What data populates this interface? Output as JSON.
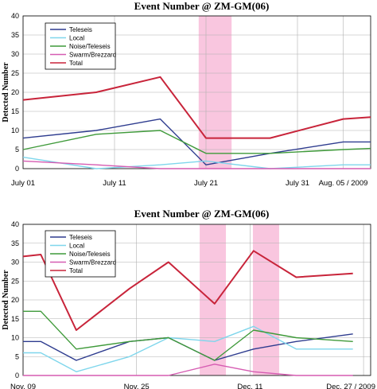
{
  "chart_data": [
    {
      "type": "line",
      "title": "Event Number @ ZM-GM(06)",
      "ylabel": "Detected Number",
      "xlabel": "",
      "ylim": [
        0,
        40
      ],
      "yticks": [
        0,
        5,
        10,
        15,
        20,
        25,
        30,
        35,
        40
      ],
      "xlim": [
        0,
        38
      ],
      "xticks": [
        {
          "x": 0,
          "label": "July 01"
        },
        {
          "x": 10,
          "label": "July 11"
        },
        {
          "x": 20,
          "label": "July 21"
        },
        {
          "x": 30,
          "label": "July 31"
        },
        {
          "x": 35,
          "label": "Aug. 05 / 2009"
        }
      ],
      "grid": true,
      "legend_position": "top-left",
      "shaded_regions": [
        {
          "x0": 19.2,
          "x1": 22.8,
          "color": "#f9c6df"
        }
      ],
      "series": [
        {
          "name": "Teleseis",
          "color": "#2e3c8f",
          "x": [
            0,
            8,
            15,
            20,
            27,
            35,
            38
          ],
          "y": [
            8,
            10,
            13,
            1,
            4,
            7,
            7
          ]
        },
        {
          "name": "Local",
          "color": "#7fd6ec",
          "x": [
            0,
            8,
            15,
            20,
            27,
            35,
            38
          ],
          "y": [
            3,
            0,
            1,
            2,
            0,
            1,
            1
          ]
        },
        {
          "name": "Noise/Teleseis",
          "color": "#3f9a3a",
          "x": [
            0,
            8,
            15,
            20,
            27,
            35,
            38
          ],
          "y": [
            5,
            9,
            10,
            4,
            4,
            5,
            5.3
          ]
        },
        {
          "name": "Swarm/Brezzard",
          "color": "#d65cb2",
          "x": [
            0,
            8,
            15,
            20,
            27,
            35,
            38
          ],
          "y": [
            2,
            1,
            0,
            0,
            0,
            0,
            0
          ]
        },
        {
          "name": "Total",
          "color": "#c8243a",
          "x": [
            0,
            8,
            15,
            20,
            27,
            35,
            38
          ],
          "y": [
            18,
            20,
            24,
            8,
            8,
            13,
            13.5
          ]
        }
      ]
    },
    {
      "type": "line",
      "title": "Event Number @ ZM-GM(06)",
      "ylabel": "Detected Number",
      "xlabel": "",
      "ylim": [
        0,
        40
      ],
      "yticks": [
        0,
        5,
        10,
        15,
        20,
        25,
        30,
        35,
        40
      ],
      "xlim": [
        0,
        49
      ],
      "xticks": [
        {
          "x": 0,
          "label": "Nov. 09"
        },
        {
          "x": 16,
          "label": "Nov. 25"
        },
        {
          "x": 32,
          "label": "Dec. 11"
        },
        {
          "x": 48,
          "label": "Dec. 27 / 2009"
        }
      ],
      "grid": true,
      "legend_position": "top-left",
      "shaded_regions": [
        {
          "x0": 24.9,
          "x1": 28.6,
          "color": "#f9c6df"
        },
        {
          "x0": 32.4,
          "x1": 36.1,
          "color": "#f9c6df"
        }
      ],
      "series": [
        {
          "name": "Teleseis",
          "color": "#2e3c8f",
          "x": [
            0,
            2.5,
            7.5,
            15,
            20.5,
            27,
            32.5,
            38.5,
            46.5
          ],
          "y": [
            9,
            9,
            4,
            9,
            10,
            4,
            7,
            9,
            11
          ]
        },
        {
          "name": "Local",
          "color": "#7fd6ec",
          "x": [
            0,
            2.5,
            7.5,
            15,
            20.5,
            27,
            32.5,
            38.5,
            46.5
          ],
          "y": [
            6,
            6,
            1,
            5,
            10,
            9,
            13,
            7,
            7
          ]
        },
        {
          "name": "Noise/Teleseis",
          "color": "#3f9a3a",
          "x": [
            0,
            2.5,
            7.5,
            15,
            20.5,
            27,
            32.5,
            38.5,
            46.5
          ],
          "y": [
            17,
            17,
            7,
            9,
            10,
            4,
            12,
            10,
            9
          ]
        },
        {
          "name": "Swarm/Brezzard",
          "color": "#d65cb2",
          "x": [
            0,
            2.5,
            7.5,
            15,
            20.5,
            27,
            32.5,
            38.5,
            46.5
          ],
          "y": [
            0,
            0,
            0,
            0,
            0,
            3,
            1,
            0,
            0
          ]
        },
        {
          "name": "Total",
          "color": "#c8243a",
          "x": [
            0,
            2.5,
            7.5,
            15,
            20.5,
            27,
            32.5,
            38.5,
            46.5
          ],
          "y": [
            31.5,
            32,
            12,
            23,
            30,
            19,
            33,
            26,
            27
          ]
        }
      ]
    }
  ]
}
